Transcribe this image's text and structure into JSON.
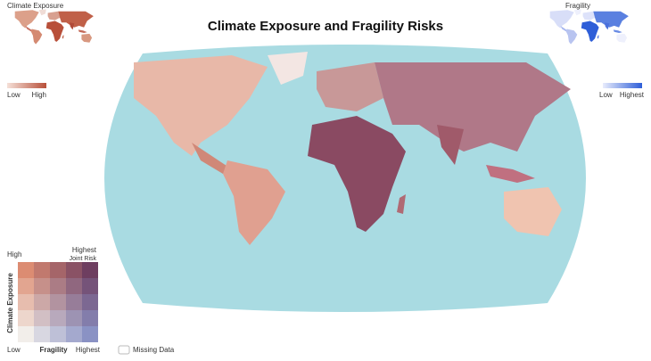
{
  "title": "Climate Exposure and Fragility Risks",
  "insets": [
    {
      "title": "Climate Exposure",
      "low": "Low",
      "high": "High"
    },
    {
      "title": "Fragility",
      "low": "Low",
      "high": "Highest"
    }
  ],
  "legend": {
    "y_high": "High",
    "corner_top": "Highest",
    "corner_bottom": "Joint Risk",
    "y_axis": "Climate Exposure",
    "x_low": "Low",
    "x_axis": "Fragility",
    "x_high": "Highest",
    "missing": "Missing Data"
  }
}
